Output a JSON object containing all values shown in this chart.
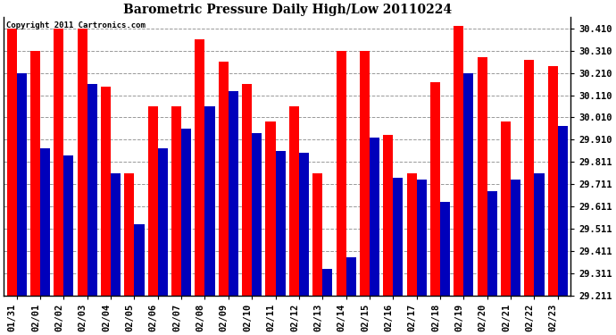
{
  "title": "Barometric Pressure Daily High/Low 20110224",
  "copyright": "Copyright 2011 Cartronics.com",
  "background_color": "#ffffff",
  "bar_color_high": "#ff0000",
  "bar_color_low": "#0000bb",
  "ylim": [
    29.211,
    30.46
  ],
  "yticks": [
    29.211,
    29.311,
    29.411,
    29.511,
    29.611,
    29.711,
    29.811,
    29.91,
    30.01,
    30.11,
    30.21,
    30.31,
    30.41
  ],
  "ytick_labels": [
    "29.211",
    "29.311",
    "29.411",
    "29.511",
    "29.611",
    "29.711",
    "29.811",
    "29.910",
    "30.010",
    "30.110",
    "30.210",
    "30.310",
    "30.410"
  ],
  "dates": [
    "01/31",
    "02/01",
    "02/02",
    "02/03",
    "02/04",
    "02/05",
    "02/06",
    "02/07",
    "02/08",
    "02/09",
    "02/10",
    "02/11",
    "02/12",
    "02/13",
    "02/14",
    "02/15",
    "02/16",
    "02/17",
    "02/18",
    "02/19",
    "02/20",
    "02/21",
    "02/22",
    "02/23"
  ],
  "highs": [
    30.41,
    30.31,
    30.41,
    30.41,
    30.15,
    29.76,
    30.06,
    30.06,
    30.36,
    30.26,
    30.16,
    29.99,
    30.06,
    29.76,
    30.31,
    30.31,
    29.93,
    29.76,
    30.17,
    30.42,
    30.28,
    29.99,
    30.27,
    30.24
  ],
  "lows": [
    30.21,
    29.87,
    29.84,
    30.16,
    29.76,
    29.53,
    29.87,
    29.96,
    30.06,
    30.13,
    29.94,
    29.86,
    29.85,
    29.33,
    29.38,
    29.92,
    29.74,
    29.73,
    29.63,
    30.21,
    29.68,
    29.73,
    29.76,
    29.97
  ]
}
